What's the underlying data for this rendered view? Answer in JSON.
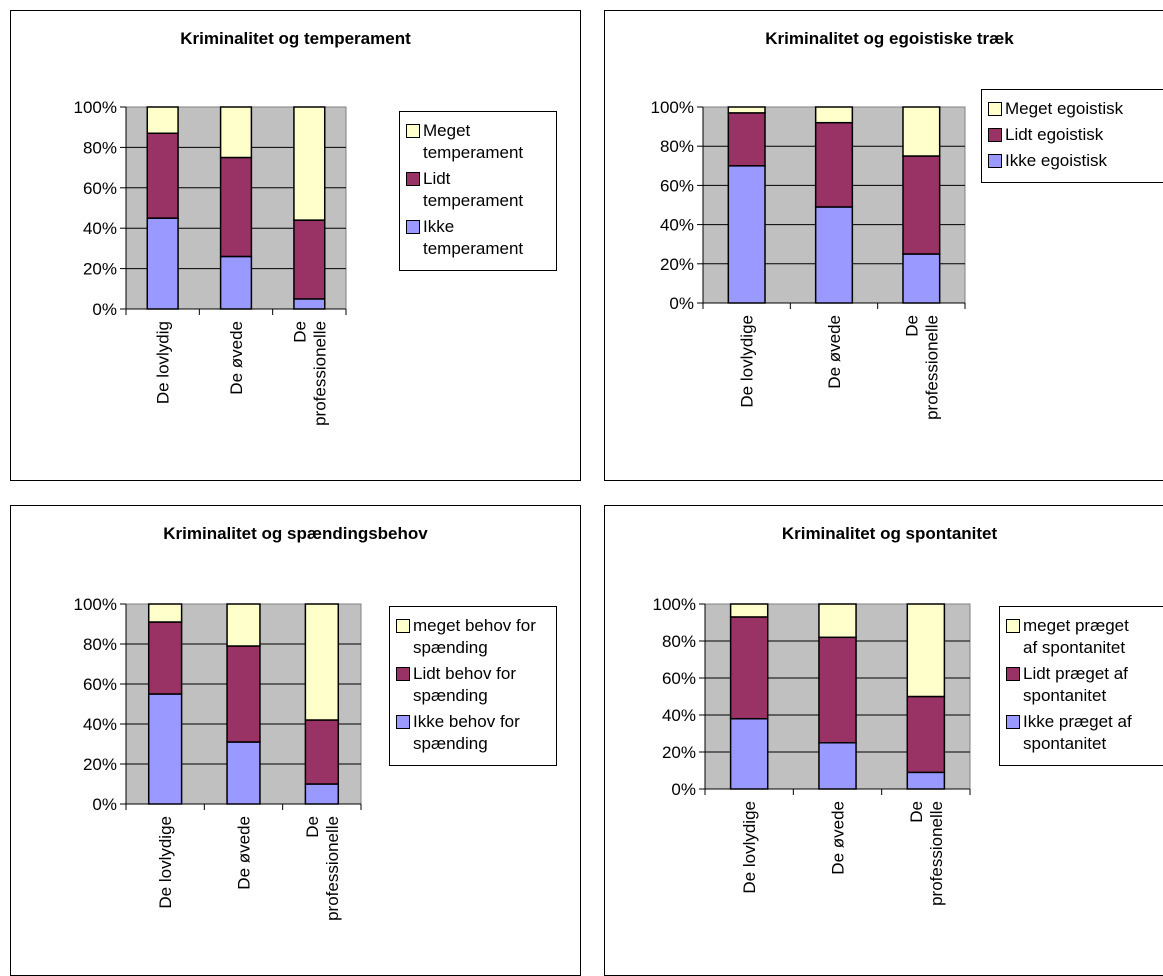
{
  "colors": {
    "low": "#9999ff",
    "mid": "#993366",
    "high": "#ffffcc",
    "plot_bg": "#c0c0c0"
  },
  "chart_data": [
    {
      "type": "bar",
      "stacked": true,
      "title": "Kriminalitet og temperament",
      "categories": [
        "De lovlydig",
        "De øvede",
        "De\nprofessionelle"
      ],
      "yticks": [
        "0%",
        "20%",
        "40%",
        "60%",
        "80%",
        "100%"
      ],
      "ylim": [
        0,
        100
      ],
      "series": [
        {
          "name": "Ikke\ntemperament",
          "values": [
            45,
            26,
            5
          ]
        },
        {
          "name": "Lidt\ntemperament",
          "values": [
            42,
            49,
            39
          ]
        },
        {
          "name": "Meget\ntemperament",
          "values": [
            13,
            25,
            56
          ]
        }
      ],
      "grid": true,
      "legend": "right"
    },
    {
      "type": "bar",
      "stacked": true,
      "title": "Kriminalitet og egoistiske træk",
      "categories": [
        "De lovlydige",
        "De øvede",
        "De\nprofessionelle"
      ],
      "yticks": [
        "0%",
        "20%",
        "40%",
        "60%",
        "80%",
        "100%"
      ],
      "ylim": [
        0,
        100
      ],
      "series": [
        {
          "name": "Ikke egoistisk",
          "values": [
            70,
            49,
            25
          ]
        },
        {
          "name": "Lidt egoistisk",
          "values": [
            27,
            43,
            50
          ]
        },
        {
          "name": "Meget egoistisk",
          "values": [
            3,
            8,
            25
          ]
        }
      ],
      "grid": true,
      "legend": "right"
    },
    {
      "type": "bar",
      "stacked": true,
      "title": "Kriminalitet og spændingsbehov",
      "categories": [
        "De lovlydige",
        "De øvede",
        "De\nprofessionelle"
      ],
      "yticks": [
        "0%",
        "20%",
        "40%",
        "60%",
        "80%",
        "100%"
      ],
      "ylim": [
        0,
        100
      ],
      "series": [
        {
          "name": "Ikke behov for\nspænding",
          "values": [
            55,
            31,
            10
          ]
        },
        {
          "name": "Lidt behov for\nspænding",
          "values": [
            36,
            48,
            32
          ]
        },
        {
          "name": "meget behov for\nspænding",
          "values": [
            9,
            21,
            58
          ]
        }
      ],
      "grid": true,
      "legend": "right"
    },
    {
      "type": "bar",
      "stacked": true,
      "title": "Kriminalitet og spontanitet",
      "categories": [
        "De lovlydige",
        "De øvede",
        "De\nprofessionelle"
      ],
      "yticks": [
        "0%",
        "20%",
        "40%",
        "60%",
        "80%",
        "100%"
      ],
      "ylim": [
        0,
        100
      ],
      "series": [
        {
          "name": "Ikke præget af\nspontanitet",
          "values": [
            38,
            25,
            9
          ]
        },
        {
          "name": "Lidt præget af\nspontanitet",
          "values": [
            55,
            57,
            41
          ]
        },
        {
          "name": "meget præget\naf spontanitet",
          "values": [
            7,
            18,
            50
          ]
        }
      ],
      "grid": true,
      "legend": "right"
    }
  ]
}
